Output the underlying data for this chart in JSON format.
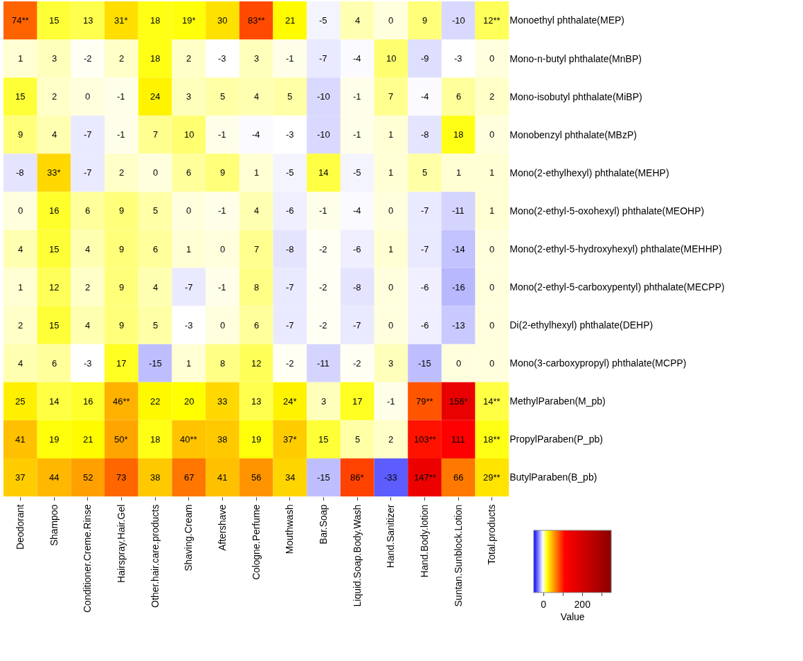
{
  "chart_data": {
    "type": "heatmap",
    "categories": [
      "Deodorant",
      "Shampoo",
      "Conditioner.Creme.Rinse",
      "Hairspray.Hair.Gel",
      "Other.hair.care.products",
      "Shaving.Cream",
      "Aftershave",
      "Cologne.Perfume",
      "Mouthwash",
      "Bar.Soap",
      "Liquid.Soap.Body.Wash",
      "Hand.Sanitizer",
      "Hand.Body.lotion",
      "Suntan.Sunblock.Lotion",
      "Total.products"
    ],
    "y_categories": [
      "Monoethyl phthalate(MEP)",
      "Mono-n-butyl phthalate(MnBP)",
      "Mono-isobutyl phthalate(MiBP)",
      "Monobenzyl phthalate(MBzP)",
      "Mono(2-ethylhexyl) phthalate(MEHP)",
      "Mono(2-ethyl-5-oxohexyl) phthalate(MEOHP)",
      "Mono(2-ethyl-5-hydroxyhexyl) phthalate(MEHHP)",
      "Mono(2-ethyl-5-carboxypentyl) phthalate(MECPP)",
      "Di(2-ethylhexyl) phthalate(DEHP)",
      "Mono(3-carboxypropyl) phthalate(MCPP)",
      "MethylParaben(M_pb)",
      "PropylParaben(P_pb)",
      "ButylParaben(B_pb)"
    ],
    "cells": [
      [
        74,
        15,
        13,
        31,
        18,
        19,
        30,
        83,
        21,
        -5,
        4,
        0,
        9,
        -10,
        12
      ],
      [
        1,
        3,
        -2,
        2,
        18,
        2,
        -3,
        3,
        -1,
        -7,
        -4,
        10,
        -9,
        -3,
        0
      ],
      [
        15,
        2,
        0,
        -1,
        24,
        3,
        5,
        4,
        5,
        -10,
        -1,
        7,
        -4,
        6,
        2
      ],
      [
        9,
        4,
        -7,
        -1,
        7,
        10,
        -1,
        -4,
        -3,
        -10,
        -1,
        1,
        -8,
        18,
        0
      ],
      [
        -8,
        33,
        -7,
        2,
        0,
        6,
        9,
        1,
        -5,
        14,
        -5,
        1,
        5,
        1,
        1
      ],
      [
        0,
        16,
        6,
        9,
        5,
        0,
        -1,
        4,
        -6,
        -1,
        -4,
        0,
        -7,
        -11,
        1
      ],
      [
        4,
        15,
        4,
        9,
        6,
        1,
        0,
        7,
        -8,
        -2,
        -6,
        1,
        -7,
        -14,
        0
      ],
      [
        1,
        12,
        2,
        9,
        4,
        -7,
        -1,
        8,
        -7,
        -2,
        -8,
        0,
        -6,
        -16,
        0
      ],
      [
        2,
        15,
        4,
        9,
        5,
        -3,
        0,
        6,
        -7,
        -2,
        -7,
        0,
        -6,
        -13,
        0
      ],
      [
        4,
        6,
        -3,
        17,
        -15,
        1,
        8,
        12,
        -2,
        -11,
        -2,
        3,
        -15,
        0,
        0
      ],
      [
        25,
        14,
        16,
        46,
        22,
        20,
        33,
        13,
        24,
        3,
        17,
        -1,
        79,
        156,
        14
      ],
      [
        41,
        19,
        21,
        50,
        18,
        40,
        38,
        19,
        37,
        15,
        5,
        2,
        103,
        111,
        18
      ],
      [
        37,
        44,
        52,
        73,
        38,
        67,
        41,
        56,
        34,
        -15,
        86,
        -33,
        147,
        66,
        29
      ]
    ],
    "cell_labels": [
      [
        "74**",
        "15",
        "13",
        "31*",
        "18",
        "19*",
        "30",
        "83**",
        "21",
        "-5",
        "4",
        "0",
        "9",
        "-10",
        "12**"
      ],
      [
        "1",
        "3",
        "-2",
        "2",
        "18",
        "2",
        "-3",
        "3",
        "-1",
        "-7",
        "-4",
        "10",
        "-9",
        "-3",
        "0"
      ],
      [
        "15",
        "2",
        "0",
        "-1",
        "24",
        "3",
        "5",
        "4",
        "5",
        "-10",
        "-1",
        "7",
        "-4",
        "6",
        "2"
      ],
      [
        "9",
        "4",
        "-7",
        "-1",
        "7",
        "10",
        "-1",
        "-4",
        "-3",
        "-10",
        "-1",
        "1",
        "-8",
        "18",
        "0"
      ],
      [
        "-8",
        "33*",
        "-7",
        "2",
        "0",
        "6",
        "9",
        "1",
        "-5",
        "14",
        "-5",
        "1",
        "5",
        "1",
        "1"
      ],
      [
        "0",
        "16",
        "6",
        "9",
        "5",
        "0",
        "-1",
        "4",
        "-6",
        "-1",
        "-4",
        "0",
        "-7",
        "-11",
        "1"
      ],
      [
        "4",
        "15",
        "4",
        "9",
        "6",
        "1",
        "0",
        "7",
        "-8",
        "-2",
        "-6",
        "1",
        "-7",
        "-14",
        "0"
      ],
      [
        "1",
        "12",
        "2",
        "9",
        "4",
        "-7",
        "-1",
        "8",
        "-7",
        "-2",
        "-8",
        "0",
        "-6",
        "-16",
        "0"
      ],
      [
        "2",
        "15",
        "4",
        "9",
        "5",
        "-3",
        "0",
        "6",
        "-7",
        "-2",
        "-7",
        "0",
        "-6",
        "-13",
        "0"
      ],
      [
        "4",
        "6",
        "-3",
        "17",
        "-15",
        "1",
        "8",
        "12",
        "-2",
        "-11",
        "-2",
        "3",
        "-15",
        "0",
        "0"
      ],
      [
        "25",
        "14",
        "16",
        "46**",
        "22",
        "20",
        "33",
        "13",
        "24*",
        "3",
        "17",
        "-1",
        "79**",
        "156*",
        "14**"
      ],
      [
        "41",
        "19",
        "21",
        "50*",
        "18",
        "40**",
        "38",
        "19",
        "37*",
        "15",
        "5",
        "2",
        "103**",
        "111",
        "18**"
      ],
      [
        "37",
        "44",
        "52",
        "73",
        "38",
        "67",
        "41",
        "56",
        "34",
        "-15",
        "86*",
        "-33",
        "147**",
        "66",
        "29**"
      ]
    ],
    "clim": [
      -50,
      350
    ],
    "cticks": [
      {
        "value": 0,
        "label": "0"
      },
      {
        "value": 100,
        "label": null
      },
      {
        "value": 200,
        "label": "200"
      },
      {
        "value": 300,
        "label": null
      }
    ],
    "clabel": "Value"
  }
}
